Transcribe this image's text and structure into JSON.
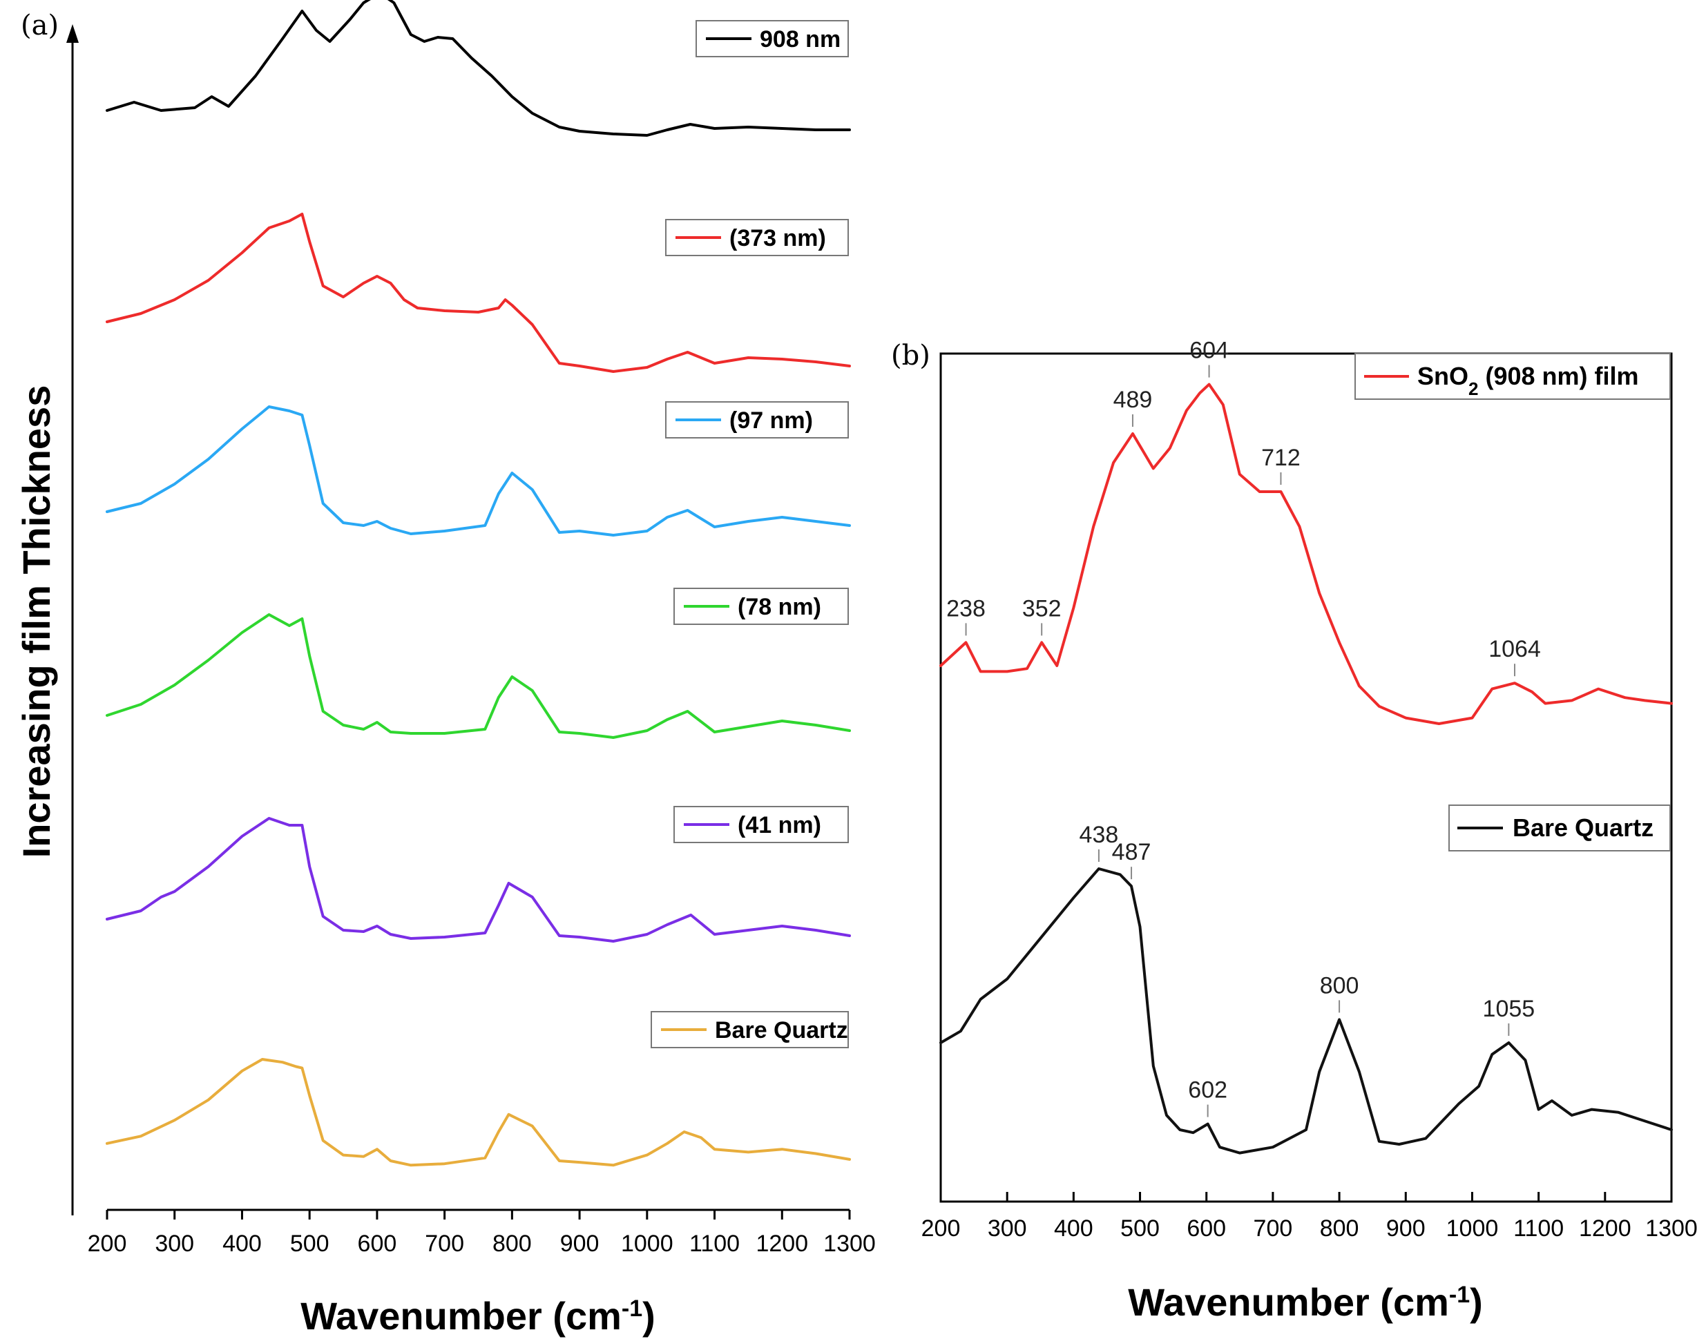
{
  "chart_data": [
    {
      "type": "line",
      "panel_label": "(a)",
      "title": "",
      "xlabel": "Wavenumber (cm-1)",
      "ylabel": "Increasing film Thickness",
      "xlim": [
        200,
        1300
      ],
      "xticks": [
        200,
        300,
        400,
        500,
        600,
        700,
        800,
        900,
        1000,
        1100,
        1200,
        1300
      ],
      "grid": false,
      "layout": "vertically stacked spectra, thickest film on top",
      "series": [
        {
          "name": "908 nm",
          "color": "#000000",
          "x": [
            200,
            240,
            280,
            330,
            355,
            380,
            420,
            460,
            489,
            510,
            530,
            560,
            580,
            604,
            625,
            650,
            670,
            690,
            712,
            740,
            770,
            800,
            830,
            870,
            900,
            950,
            1000,
            1030,
            1064,
            1100,
            1150,
            1200,
            1250,
            1300
          ],
          "y": [
            0.2,
            0.26,
            0.2,
            0.22,
            0.3,
            0.23,
            0.45,
            0.72,
            0.92,
            0.78,
            0.7,
            0.86,
            0.98,
            1.05,
            0.98,
            0.75,
            0.7,
            0.73,
            0.72,
            0.58,
            0.45,
            0.3,
            0.18,
            0.08,
            0.05,
            0.03,
            0.02,
            0.06,
            0.1,
            0.07,
            0.08,
            0.07,
            0.06,
            0.06
          ]
        },
        {
          "name": "(373 nm)",
          "color": "#ee2b2b",
          "x": [
            200,
            250,
            300,
            350,
            400,
            440,
            470,
            489,
            500,
            520,
            550,
            580,
            600,
            620,
            640,
            660,
            700,
            750,
            780,
            790,
            800,
            830,
            870,
            900,
            950,
            1000,
            1030,
            1060,
            1100,
            1150,
            1200,
            1250,
            1300
          ],
          "y": [
            0.02,
            0.08,
            0.18,
            0.32,
            0.52,
            0.7,
            0.75,
            0.8,
            0.6,
            0.28,
            0.2,
            0.3,
            0.35,
            0.3,
            0.18,
            0.12,
            0.1,
            0.09,
            0.12,
            0.18,
            0.14,
            0.0,
            -0.28,
            -0.3,
            -0.34,
            -0.31,
            -0.25,
            -0.2,
            -0.28,
            -0.24,
            -0.25,
            -0.27,
            -0.3
          ]
        },
        {
          "name": "(97 nm)",
          "color": "#2aa8f4",
          "x": [
            200,
            250,
            300,
            350,
            400,
            440,
            470,
            489,
            500,
            520,
            550,
            580,
            600,
            620,
            650,
            700,
            760,
            780,
            800,
            830,
            870,
            900,
            950,
            1000,
            1030,
            1060,
            1100,
            1150,
            1200,
            1250,
            1300
          ],
          "y": [
            0.02,
            0.08,
            0.22,
            0.4,
            0.62,
            0.78,
            0.75,
            0.72,
            0.5,
            0.08,
            -0.06,
            -0.08,
            -0.05,
            -0.1,
            -0.14,
            -0.12,
            -0.08,
            0.15,
            0.3,
            0.18,
            -0.13,
            -0.12,
            -0.15,
            -0.12,
            -0.02,
            0.03,
            -0.09,
            -0.05,
            -0.02,
            -0.05,
            -0.08
          ]
        },
        {
          "name": "(78 nm)",
          "color": "#2fd62f",
          "x": [
            200,
            250,
            300,
            350,
            400,
            440,
            470,
            489,
            500,
            520,
            550,
            580,
            600,
            620,
            650,
            700,
            760,
            780,
            800,
            830,
            870,
            900,
            950,
            1000,
            1030,
            1060,
            1100,
            1150,
            1200,
            1250,
            1300
          ],
          "y": [
            0.02,
            0.1,
            0.24,
            0.42,
            0.62,
            0.75,
            0.67,
            0.72,
            0.45,
            0.05,
            -0.05,
            -0.08,
            -0.03,
            -0.1,
            -0.11,
            -0.11,
            -0.08,
            0.15,
            0.3,
            0.2,
            -0.1,
            -0.11,
            -0.14,
            -0.09,
            -0.01,
            0.05,
            -0.1,
            -0.06,
            -0.02,
            -0.05,
            -0.09
          ]
        },
        {
          "name": "(41 nm)",
          "color": "#7a2ee6",
          "x": [
            200,
            250,
            280,
            300,
            350,
            400,
            440,
            470,
            489,
            500,
            520,
            550,
            580,
            600,
            620,
            650,
            700,
            760,
            780,
            795,
            830,
            870,
            900,
            950,
            1000,
            1030,
            1065,
            1100,
            1150,
            1200,
            1250,
            1300
          ],
          "y": [
            0.02,
            0.08,
            0.18,
            0.22,
            0.4,
            0.62,
            0.75,
            0.7,
            0.7,
            0.4,
            0.04,
            -0.06,
            -0.07,
            -0.03,
            -0.09,
            -0.12,
            -0.11,
            -0.08,
            0.12,
            0.28,
            0.18,
            -0.1,
            -0.11,
            -0.14,
            -0.09,
            -0.02,
            0.05,
            -0.09,
            -0.06,
            -0.03,
            -0.06,
            -0.1
          ]
        },
        {
          "name": "Bare Quartz",
          "color": "#e8ad3c",
          "x": [
            200,
            250,
            300,
            350,
            400,
            430,
            460,
            480,
            489,
            500,
            520,
            550,
            580,
            600,
            620,
            650,
            700,
            760,
            780,
            795,
            830,
            870,
            900,
            950,
            1000,
            1030,
            1055,
            1080,
            1100,
            1150,
            1200,
            1250,
            1300
          ],
          "y": [
            0.02,
            0.07,
            0.18,
            0.32,
            0.52,
            0.6,
            0.58,
            0.55,
            0.54,
            0.35,
            0.04,
            -0.06,
            -0.07,
            -0.02,
            -0.1,
            -0.13,
            -0.12,
            -0.08,
            0.1,
            0.22,
            0.14,
            -0.1,
            -0.11,
            -0.13,
            -0.06,
            0.02,
            0.1,
            0.06,
            -0.02,
            -0.04,
            -0.02,
            -0.05,
            -0.09
          ]
        }
      ]
    },
    {
      "type": "line",
      "panel_label": "(b)",
      "title": "",
      "xlabel": "Wavenumber (cm-1)",
      "ylabel": "",
      "xlim": [
        200,
        1300
      ],
      "xticks": [
        200,
        300,
        400,
        500,
        600,
        700,
        800,
        900,
        1000,
        1100,
        1200,
        1300
      ],
      "grid": false,
      "series": [
        {
          "name": "SnO2 (908 nm) film",
          "color": "#ee2b2b",
          "x": [
            200,
            238,
            260,
            300,
            330,
            352,
            375,
            400,
            430,
            460,
            489,
            520,
            545,
            570,
            590,
            604,
            625,
            650,
            680,
            712,
            740,
            770,
            800,
            830,
            860,
            900,
            950,
            1000,
            1030,
            1064,
            1090,
            1110,
            1150,
            1190,
            1230,
            1260,
            1300
          ],
          "y": [
            0.2,
            0.28,
            0.18,
            0.18,
            0.19,
            0.28,
            0.2,
            0.4,
            0.68,
            0.9,
            1.0,
            0.88,
            0.95,
            1.08,
            1.14,
            1.17,
            1.1,
            0.86,
            0.8,
            0.8,
            0.68,
            0.45,
            0.28,
            0.13,
            0.06,
            0.02,
            0.0,
            0.02,
            0.12,
            0.14,
            0.11,
            0.07,
            0.08,
            0.12,
            0.09,
            0.08,
            0.07
          ]
        },
        {
          "name": "Bare Quartz",
          "color": "#111111",
          "x": [
            200,
            230,
            260,
            300,
            350,
            400,
            438,
            470,
            487,
            500,
            520,
            540,
            560,
            580,
            602,
            620,
            650,
            700,
            750,
            770,
            800,
            830,
            860,
            890,
            930,
            980,
            1010,
            1030,
            1055,
            1080,
            1100,
            1120,
            1150,
            1180,
            1220,
            1260,
            1300
          ],
          "y": [
            0.3,
            0.34,
            0.45,
            0.52,
            0.66,
            0.8,
            0.9,
            0.88,
            0.84,
            0.7,
            0.22,
            0.05,
            0.0,
            -0.01,
            0.02,
            -0.06,
            -0.08,
            -0.06,
            0.0,
            0.2,
            0.38,
            0.2,
            -0.04,
            -0.05,
            -0.03,
            0.09,
            0.15,
            0.26,
            0.3,
            0.24,
            0.07,
            0.1,
            0.05,
            0.07,
            0.06,
            0.03,
            0.0
          ]
        }
      ],
      "annotations": [
        {
          "text": "238",
          "series": 0,
          "x": 238
        },
        {
          "text": "352",
          "series": 0,
          "x": 352
        },
        {
          "text": "489",
          "series": 0,
          "x": 489
        },
        {
          "text": "604",
          "series": 0,
          "x": 604
        },
        {
          "text": "712",
          "series": 0,
          "x": 712
        },
        {
          "text": "1064",
          "series": 0,
          "x": 1064
        },
        {
          "text": "438",
          "series": 1,
          "x": 438
        },
        {
          "text": "487",
          "series": 1,
          "x": 487
        },
        {
          "text": "602",
          "series": 1,
          "x": 602
        },
        {
          "text": "800",
          "series": 1,
          "x": 800
        },
        {
          "text": "1055",
          "series": 1,
          "x": 1055
        }
      ]
    }
  ],
  "axis_title_unit_base": "Wavenumber (cm",
  "axis_title_superscript": "-1",
  "axis_title_close": ")",
  "legend_b_prefix": "SnO",
  "legend_b_subscript": "2",
  "legend_b_suffix": " (908 nm) film"
}
